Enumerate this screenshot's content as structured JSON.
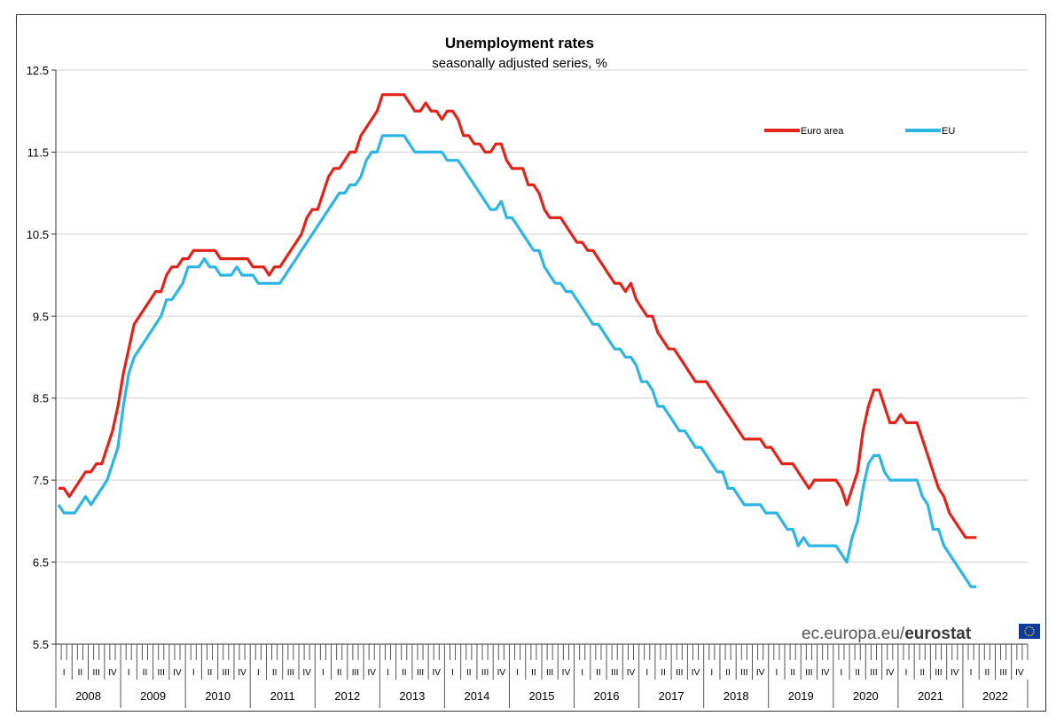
{
  "chart_data": {
    "type": "line",
    "title": "Unemployment rates",
    "subtitle": "seasonally adjusted series, %",
    "ylim": [
      5.5,
      12.5
    ],
    "yticks": [
      "12.5",
      "11.5",
      "10.5",
      "9.5",
      "8.5",
      "7.5",
      "6.5",
      "5.5"
    ],
    "years": [
      "2008",
      "2009",
      "2010",
      "2011",
      "2012",
      "2013",
      "2014",
      "2015",
      "2016",
      "2017",
      "2018",
      "2019",
      "2020",
      "2021",
      "2022"
    ],
    "quarter_labels": [
      "I",
      "II",
      "III",
      "IV"
    ],
    "x_start": "2008-01",
    "x_end": "2022-03",
    "grid": "horizontal",
    "legend_position": "top-right",
    "series": [
      {
        "name": "Euro area",
        "color": "#e2231a",
        "values": [
          7.4,
          7.4,
          7.3,
          7.4,
          7.5,
          7.6,
          7.6,
          7.7,
          7.7,
          7.9,
          8.1,
          8.4,
          8.8,
          9.1,
          9.4,
          9.5,
          9.6,
          9.7,
          9.8,
          9.8,
          10.0,
          10.1,
          10.1,
          10.2,
          10.2,
          10.3,
          10.3,
          10.3,
          10.3,
          10.3,
          10.2,
          10.2,
          10.2,
          10.2,
          10.2,
          10.2,
          10.1,
          10.1,
          10.1,
          10.0,
          10.1,
          10.1,
          10.2,
          10.3,
          10.4,
          10.5,
          10.7,
          10.8,
          10.8,
          11.0,
          11.2,
          11.3,
          11.3,
          11.4,
          11.5,
          11.5,
          11.7,
          11.8,
          11.9,
          12.0,
          12.2,
          12.2,
          12.2,
          12.2,
          12.2,
          12.1,
          12.0,
          12.0,
          12.1,
          12.0,
          12.0,
          11.9,
          12.0,
          12.0,
          11.9,
          11.7,
          11.7,
          11.6,
          11.6,
          11.5,
          11.5,
          11.6,
          11.6,
          11.4,
          11.3,
          11.3,
          11.3,
          11.1,
          11.1,
          11.0,
          10.8,
          10.7,
          10.7,
          10.7,
          10.6,
          10.5,
          10.4,
          10.4,
          10.3,
          10.3,
          10.2,
          10.1,
          10.0,
          9.9,
          9.9,
          9.8,
          9.9,
          9.7,
          9.6,
          9.5,
          9.5,
          9.3,
          9.2,
          9.1,
          9.1,
          9.0,
          8.9,
          8.8,
          8.7,
          8.7,
          8.7,
          8.6,
          8.5,
          8.4,
          8.3,
          8.2,
          8.1,
          8.0,
          8.0,
          8.0,
          8.0,
          7.9,
          7.9,
          7.8,
          7.7,
          7.7,
          7.7,
          7.6,
          7.5,
          7.4,
          7.5,
          7.5,
          7.5,
          7.5,
          7.5,
          7.4,
          7.2,
          7.4,
          7.6,
          8.1,
          8.4,
          8.6,
          8.6,
          8.4,
          8.2,
          8.2,
          8.3,
          8.2,
          8.2,
          8.2,
          8.0,
          7.8,
          7.6,
          7.4,
          7.3,
          7.1,
          7.0,
          6.9,
          6.8,
          6.8,
          6.8
        ]
      },
      {
        "name": "EU",
        "color": "#2db5e4",
        "values": [
          7.2,
          7.1,
          7.1,
          7.1,
          7.2,
          7.3,
          7.2,
          7.3,
          7.4,
          7.5,
          7.7,
          7.9,
          8.4,
          8.8,
          9.0,
          9.1,
          9.2,
          9.3,
          9.4,
          9.5,
          9.7,
          9.7,
          9.8,
          9.9,
          10.1,
          10.1,
          10.1,
          10.2,
          10.1,
          10.1,
          10.0,
          10.0,
          10.0,
          10.1,
          10.0,
          10.0,
          10.0,
          9.9,
          9.9,
          9.9,
          9.9,
          9.9,
          10.0,
          10.1,
          10.2,
          10.3,
          10.4,
          10.5,
          10.6,
          10.7,
          10.8,
          10.9,
          11.0,
          11.0,
          11.1,
          11.1,
          11.2,
          11.4,
          11.5,
          11.5,
          11.7,
          11.7,
          11.7,
          11.7,
          11.7,
          11.6,
          11.5,
          11.5,
          11.5,
          11.5,
          11.5,
          11.5,
          11.4,
          11.4,
          11.4,
          11.3,
          11.2,
          11.1,
          11.0,
          10.9,
          10.8,
          10.8,
          10.9,
          10.7,
          10.7,
          10.6,
          10.5,
          10.4,
          10.3,
          10.3,
          10.1,
          10.0,
          9.9,
          9.9,
          9.8,
          9.8,
          9.7,
          9.6,
          9.5,
          9.4,
          9.4,
          9.3,
          9.2,
          9.1,
          9.1,
          9.0,
          9.0,
          8.9,
          8.7,
          8.7,
          8.6,
          8.4,
          8.4,
          8.3,
          8.2,
          8.1,
          8.1,
          8.0,
          7.9,
          7.9,
          7.8,
          7.7,
          7.6,
          7.6,
          7.4,
          7.4,
          7.3,
          7.2,
          7.2,
          7.2,
          7.2,
          7.1,
          7.1,
          7.1,
          7.0,
          6.9,
          6.9,
          6.7,
          6.8,
          6.7,
          6.7,
          6.7,
          6.7,
          6.7,
          6.7,
          6.6,
          6.5,
          6.8,
          7.0,
          7.4,
          7.7,
          7.8,
          7.8,
          7.6,
          7.5,
          7.5,
          7.5,
          7.5,
          7.5,
          7.5,
          7.3,
          7.2,
          6.9,
          6.9,
          6.7,
          6.6,
          6.5,
          6.4,
          6.3,
          6.2,
          6.2
        ]
      }
    ]
  },
  "source": {
    "prefix": "ec.europa.eu/",
    "brand": "eurostat"
  }
}
